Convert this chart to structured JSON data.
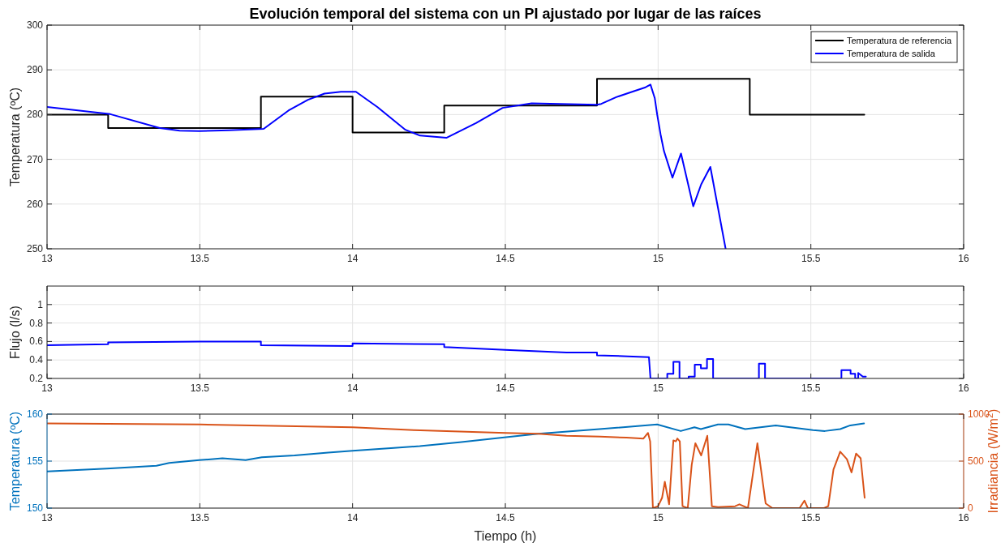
{
  "chart_data": [
    {
      "type": "line",
      "title": "Evolución temporal del sistema con un PI ajustado por lugar de las raíces",
      "ylabel": "Temperatura (ºC)",
      "xlim": [
        13,
        16
      ],
      "xticks": [
        13,
        13.5,
        14,
        14.5,
        15,
        15.5,
        16
      ],
      "ylim": [
        250,
        300
      ],
      "yticks": [
        250,
        260,
        270,
        280,
        290,
        300
      ],
      "grid": true,
      "legend": "top right",
      "series": [
        {
          "name": "Temperatura de referencia",
          "type": "step",
          "color": "#000000",
          "x": [
            13,
            13.2,
            13.7,
            14,
            14.3,
            14.8,
            15.3,
            15.675
          ],
          "values": [
            280,
            277,
            284,
            276,
            282,
            288,
            280,
            280
          ]
        },
        {
          "name": "Temperatura de salida",
          "color": "#0000ff",
          "x": [
            13,
            13.207,
            13.369,
            13.434,
            13.498,
            13.595,
            13.709,
            13.79,
            13.854,
            13.908,
            13.962,
            14.011,
            14.081,
            14.173,
            14.221,
            14.307,
            14.404,
            14.491,
            14.586,
            14.8,
            14.814,
            14.863,
            14.919,
            14.959,
            14.975,
            14.989,
            14.997,
            15.008,
            15.019,
            15.047,
            15.075,
            15.115,
            15.141,
            15.171,
            15.221
          ],
          "values": [
            281.7,
            280.1,
            277.0,
            276.4,
            276.3,
            276.5,
            276.8,
            280.9,
            283.3,
            284.7,
            285.1,
            285.1,
            281.7,
            276.6,
            275.3,
            274.8,
            278.1,
            281.5,
            282.5,
            282.2,
            282.4,
            283.9,
            285.2,
            286.1,
            286.7,
            283.7,
            280.0,
            275.6,
            271.9,
            265.9,
            271.3,
            259.5,
            264.4,
            268.3,
            250
          ]
        }
      ]
    },
    {
      "type": "line",
      "ylabel": "Flujo (l/s)",
      "xlim": [
        13,
        16
      ],
      "xticks": [
        13,
        13.5,
        14,
        14.5,
        15,
        15.5,
        16
      ],
      "ylim": [
        0.2,
        1.2
      ],
      "yticks": [
        0.2,
        0.4,
        0.6,
        0.8,
        1
      ],
      "grid": true,
      "series": [
        {
          "color": "#0000ff",
          "x": [
            13,
            13.2,
            13.2,
            13.5,
            13.7,
            13.7,
            14.0,
            14.0,
            14.3,
            14.3,
            14.5,
            14.7,
            14.8,
            14.8,
            14.9,
            14.97,
            14.975,
            15.03,
            15.03,
            15.05,
            15.05,
            15.07,
            15.07,
            15.1,
            15.1,
            15.12,
            15.12,
            15.14,
            15.14,
            15.16,
            15.16,
            15.18,
            15.18,
            15.33,
            15.33,
            15.35,
            15.35,
            15.6,
            15.6,
            15.63,
            15.63,
            15.645,
            15.645,
            15.655,
            15.655,
            15.67,
            15.68
          ],
          "values": [
            0.56,
            0.57,
            0.59,
            0.6,
            0.6,
            0.56,
            0.55,
            0.58,
            0.57,
            0.54,
            0.51,
            0.48,
            0.48,
            0.45,
            0.44,
            0.43,
            0.2,
            0.2,
            0.25,
            0.25,
            0.38,
            0.38,
            0.2,
            0.2,
            0.22,
            0.22,
            0.35,
            0.35,
            0.31,
            0.31,
            0.41,
            0.41,
            0.2,
            0.2,
            0.36,
            0.36,
            0.2,
            0.2,
            0.29,
            0.29,
            0.25,
            0.25,
            0.2,
            0.2,
            0.26,
            0.22,
            0.22
          ]
        }
      ]
    },
    {
      "type": "line",
      "xlabel": "Tiempo (h)",
      "ylabel": "Temperatura (ºC)",
      "y2label": "Irradiancia (W/m$^{2}$)",
      "xlim": [
        13,
        16
      ],
      "xticks": [
        13,
        13.5,
        14,
        14.5,
        15,
        15.5,
        16
      ],
      "ylim": [
        150,
        160
      ],
      "yticks": [
        150,
        155,
        160
      ],
      "y2lim": [
        0,
        1000
      ],
      "y2ticks": [
        0,
        500,
        1000
      ],
      "grid": true,
      "series": [
        {
          "color": "#0072bd",
          "x": [
            13,
            13.196,
            13.358,
            13.4,
            13.498,
            13.574,
            13.65,
            13.703,
            13.81,
            13.92,
            14.0,
            14.135,
            14.22,
            14.35,
            14.49,
            14.608,
            14.808,
            14.997,
            15.074,
            15.119,
            15.14,
            15.196,
            15.23,
            15.285,
            15.385,
            15.507,
            15.546,
            15.596,
            15.629,
            15.674
          ],
          "values": [
            153.9,
            154.2,
            154.5,
            154.8,
            155.1,
            155.3,
            155.1,
            155.4,
            155.6,
            155.9,
            156.1,
            156.4,
            156.6,
            157.0,
            157.5,
            157.9,
            158.4,
            158.9,
            158.2,
            158.6,
            158.4,
            158.9,
            158.9,
            158.4,
            158.8,
            158.3,
            158.2,
            158.4,
            158.8,
            159.0
          ]
        },
        {
          "axis": "y2",
          "color": "#d95319",
          "x": [
            13,
            13.5,
            14.0,
            14.2,
            14.5,
            14.608,
            14.7,
            14.81,
            14.897,
            14.952,
            14.967,
            14.974,
            14.983,
            15.0,
            15.013,
            15.022,
            15.036,
            15.05,
            15.058,
            15.063,
            15.071,
            15.08,
            15.097,
            15.11,
            15.122,
            15.141,
            15.161,
            15.176,
            15.196,
            15.252,
            15.266,
            15.294,
            15.325,
            15.352,
            15.374,
            15.463,
            15.479,
            15.49,
            15.543,
            15.557,
            15.574,
            15.596,
            15.618,
            15.633,
            15.648,
            15.663,
            15.676
          ],
          "values": [
            900,
            890,
            860,
            830,
            800,
            790,
            770,
            760,
            750,
            740,
            800,
            710,
            0,
            20,
            110,
            280,
            40,
            720,
            710,
            740,
            710,
            20,
            0,
            460,
            690,
            560,
            770,
            20,
            10,
            20,
            40,
            0,
            690,
            50,
            0,
            0,
            80,
            0,
            0,
            20,
            410,
            600,
            520,
            380,
            580,
            530,
            110
          ]
        }
      ]
    }
  ]
}
